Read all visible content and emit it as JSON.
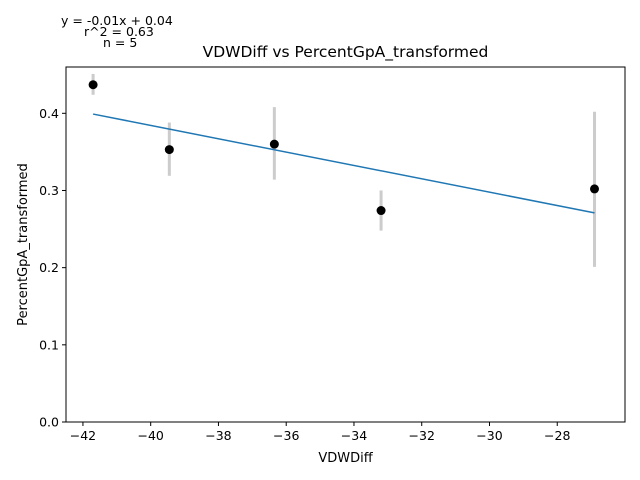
{
  "chart_data": {
    "type": "scatter",
    "title": "VDWDiff vs PercentGpA_transformed",
    "xlabel": "VDWDiff",
    "ylabel": "PercentGpA_transformed",
    "xlim": [
      -42.5,
      -26.0
    ],
    "ylim": [
      0.0,
      0.46
    ],
    "xticks": [
      -42,
      -40,
      -38,
      -36,
      -34,
      -32,
      -30,
      -28
    ],
    "xtick_labels": [
      "−42",
      "−40",
      "−38",
      "−36",
      "−34",
      "−32",
      "−30",
      "−28"
    ],
    "yticks": [
      0.0,
      0.1,
      0.2,
      0.3,
      0.4
    ],
    "ytick_labels": [
      "0.0",
      "0.1",
      "0.2",
      "0.3",
      "0.4"
    ],
    "grid": false,
    "points": [
      {
        "x": -41.7,
        "y": 0.437,
        "err_low": 0.424,
        "err_high": 0.451
      },
      {
        "x": -39.45,
        "y": 0.353,
        "err_low": 0.319,
        "err_high": 0.388
      },
      {
        "x": -36.35,
        "y": 0.36,
        "err_low": 0.314,
        "err_high": 0.408
      },
      {
        "x": -33.2,
        "y": 0.274,
        "err_low": 0.248,
        "err_high": 0.3
      },
      {
        "x": -26.9,
        "y": 0.302,
        "err_low": 0.201,
        "err_high": 0.402
      }
    ],
    "fit_line": {
      "x0": -41.7,
      "y0": 0.399,
      "x1": -26.9,
      "y1": 0.271
    },
    "annotations": [
      "y = -0.01x + 0.04",
      "r^2 = 0.63",
      "n = 5"
    ],
    "colors": {
      "points": "#000000",
      "errorbars": "#cccccc",
      "fit": "#1f77b4"
    }
  }
}
